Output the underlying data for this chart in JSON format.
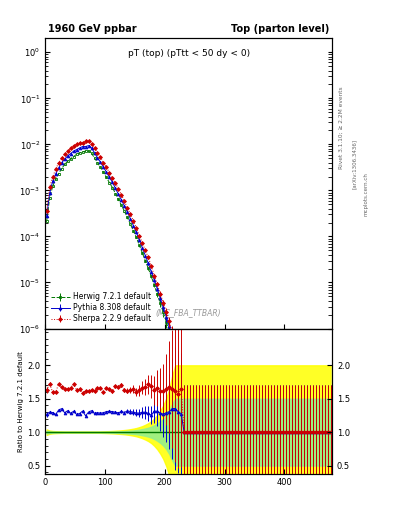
{
  "title_left": "1960 GeV ppbar",
  "title_right": "Top (parton level)",
  "plot_title": "pT (top) (pTtt < 50 dy < 0)",
  "watermark": "(MC_FBA_TTBAR)",
  "right_label": "Rivet 3.1.10; ≥ 2.2M events",
  "arxiv_label": "[arXiv:1306.3436]",
  "mcplots_label": "mcplots.cern.ch",
  "ylabel_ratio": "Ratio to Herwig 7.2.1 default",
  "legend": [
    "Herwig 7.2.1 default",
    "Pythia 8.308 default",
    "Sherpa 2.2.9 default"
  ],
  "xlim": [
    0,
    480
  ],
  "ylim_main": [
    1e-06,
    2.0
  ],
  "ylim_ratio": [
    0.38,
    2.55
  ],
  "ratio_yticks": [
    0.5,
    1.0,
    1.5,
    2.0
  ],
  "herwig_color": "#007700",
  "pythia_color": "#0000cc",
  "sherpa_color": "#cc0000"
}
